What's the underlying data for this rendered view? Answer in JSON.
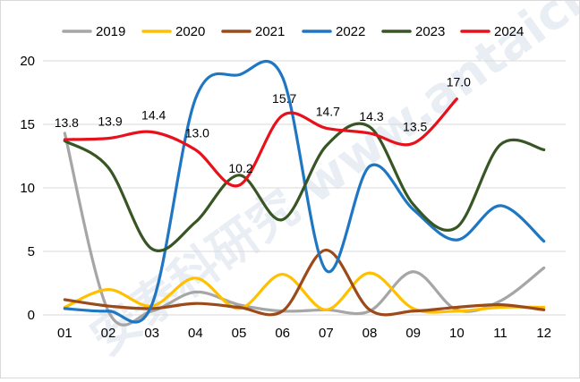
{
  "chart_data": {
    "type": "line",
    "categories": [
      "01",
      "02",
      "03",
      "04",
      "05",
      "06",
      "07",
      "08",
      "09",
      "10",
      "11",
      "12"
    ],
    "ylim": [
      0,
      20
    ],
    "yticks": [
      0,
      5,
      10,
      15,
      20
    ],
    "grid": true,
    "legend_position": "top",
    "series": [
      {
        "name": "2019",
        "color": "#a6a6a6",
        "values": [
          14.3,
          0.3,
          0.3,
          1.8,
          0.8,
          0.3,
          0.4,
          0.3,
          3.4,
          0.4,
          1.1,
          3.7
        ]
      },
      {
        "name": "2020",
        "color": "#ffc000",
        "values": [
          0.6,
          2.0,
          0.7,
          2.9,
          0.5,
          3.2,
          0.4,
          3.3,
          0.5,
          0.3,
          0.6,
          0.6
        ]
      },
      {
        "name": "2021",
        "color": "#9c4a1a",
        "values": [
          1.2,
          0.7,
          0.5,
          0.9,
          0.6,
          0.3,
          5.1,
          0.4,
          0.3,
          0.6,
          0.8,
          0.4
        ]
      },
      {
        "name": "2022",
        "color": "#1f77c4",
        "values": [
          0.5,
          0.3,
          0.8,
          17.0,
          18.9,
          18.7,
          3.5,
          11.7,
          8.3,
          5.9,
          8.6,
          5.8
        ]
      },
      {
        "name": "2023",
        "color": "#375623",
        "values": [
          13.7,
          11.6,
          5.2,
          7.3,
          11.0,
          7.5,
          13.3,
          14.8,
          8.7,
          6.9,
          13.4,
          13.0
        ]
      },
      {
        "name": "2024",
        "color": "#e8101a",
        "values": [
          13.8,
          13.9,
          14.4,
          13.0,
          10.2,
          15.7,
          14.7,
          14.3,
          13.5,
          17.0,
          null,
          null
        ]
      }
    ],
    "data_labels": {
      "series": "2024",
      "texts": [
        "13.8",
        "13.9",
        "14.4",
        "13.0",
        "10.2",
        "15.7",
        "14.7",
        "14.3",
        "13.5",
        "17.0"
      ]
    },
    "watermark": "安泰科研究 www.antaichina.com"
  }
}
